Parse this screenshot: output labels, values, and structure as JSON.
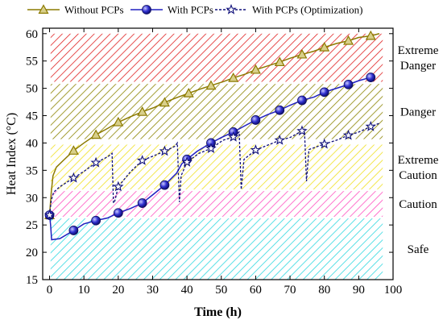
{
  "chart_data": {
    "type": "line",
    "xlabel": "Time (h)",
    "ylabel": "Heat Index (°C)",
    "xlim": [
      -2,
      100
    ],
    "ylim": [
      15,
      61
    ],
    "x_ticks": [
      0,
      10,
      20,
      30,
      40,
      50,
      60,
      70,
      80,
      90,
      100
    ],
    "y_ticks": [
      15,
      20,
      25,
      30,
      35,
      40,
      45,
      50,
      55,
      60
    ],
    "legend_placement": "top",
    "grid": false,
    "zones": [
      {
        "name": "Extreme Danger",
        "label_lines": [
          "Extreme",
          "Danger"
        ],
        "y_range": [
          51.2,
          60
        ],
        "color": "#e02020"
      },
      {
        "name": "Danger",
        "label_lines": [
          "Danger"
        ],
        "y_range": [
          40.7,
          50.8
        ],
        "color": "#8c8400"
      },
      {
        "name": "Extreme Caution",
        "label_lines": [
          "Extreme",
          "Caution"
        ],
        "y_range": [
          31.5,
          39.7
        ],
        "color": "#f0e020"
      },
      {
        "name": "Caution",
        "label_lines": [
          "Caution"
        ],
        "y_range": [
          26.5,
          31.2
        ],
        "color": "#ff50c0"
      },
      {
        "name": "Safe",
        "label_lines": [
          "Safe"
        ],
        "y_range": [
          15,
          26.2
        ],
        "color": "#30d8e0"
      }
    ],
    "series": [
      {
        "name": "Without PCPs",
        "color": "#8c7a00",
        "marker": "triangle",
        "dashed": false,
        "x": [
          0,
          0.5,
          1,
          2,
          4,
          7,
          10,
          13.5,
          17,
          20,
          23.5,
          27,
          30.5,
          33.5,
          37,
          40.5,
          44,
          47,
          50.5,
          53.5,
          57,
          60,
          63.5,
          67,
          70,
          73.5,
          77,
          80,
          83.5,
          87,
          90,
          93.5,
          96
        ],
        "y": [
          26.8,
          31,
          34,
          35.6,
          36.8,
          38.6,
          40,
          41.5,
          42.7,
          43.8,
          44.8,
          45.7,
          46.5,
          47.4,
          48.3,
          49.1,
          49.9,
          50.5,
          51.2,
          51.9,
          52.6,
          53.4,
          54.1,
          54.8,
          55.5,
          56.2,
          56.8,
          57.5,
          58.2,
          58.7,
          59.3,
          59.6,
          60
        ]
      },
      {
        "name": "With PCPs",
        "color": "#2020c0",
        "marker": "circle",
        "dashed": false,
        "x": [
          0,
          0.3,
          0.6,
          3,
          7,
          10,
          13.5,
          17,
          20,
          23.5,
          27,
          30,
          33.5,
          37,
          38.5,
          40,
          43,
          47,
          50,
          53.5,
          57,
          60,
          63.5,
          67,
          70,
          73.5,
          77,
          80,
          83.5,
          87,
          90,
          93.5
        ],
        "y": [
          26.8,
          25,
          22.3,
          22.5,
          24,
          25.2,
          25.8,
          26.3,
          27.2,
          28,
          29,
          30.5,
          32.3,
          34.5,
          36.2,
          37,
          38.5,
          40,
          41,
          42,
          43.2,
          44.2,
          45.2,
          46,
          46.9,
          47.8,
          48.4,
          49.3,
          50,
          50.7,
          51.4,
          52
        ]
      },
      {
        "name": "With PCPs (Optimization)",
        "color": "#10107a",
        "marker": "star",
        "dashed": true,
        "x": [
          0,
          0.5,
          1.2,
          3,
          7,
          10,
          13.5,
          17,
          18.2,
          18.6,
          19,
          20,
          23.5,
          27,
          30.5,
          33.5,
          36.5,
          37.2,
          37.8,
          38.3,
          40,
          43.5,
          47,
          50.5,
          53.5,
          55.2,
          55.8,
          56.6,
          60,
          63.5,
          67,
          70,
          73.5,
          74.2,
          74.8,
          75.5,
          80,
          83.5,
          87,
          90,
          93.5,
          96
        ],
        "y": [
          26.8,
          29.5,
          31,
          32,
          33.6,
          34.8,
          36.4,
          37.5,
          38.1,
          29,
          29.4,
          32,
          34.7,
          36.8,
          37.7,
          38.5,
          39.4,
          40,
          29.2,
          34,
          36.5,
          38.1,
          39,
          40.5,
          41.1,
          42,
          31.5,
          37,
          38.7,
          39.6,
          40.5,
          41,
          42.2,
          42.5,
          33,
          38.8,
          39.8,
          40.5,
          41.4,
          42,
          43,
          43.6
        ]
      }
    ]
  }
}
